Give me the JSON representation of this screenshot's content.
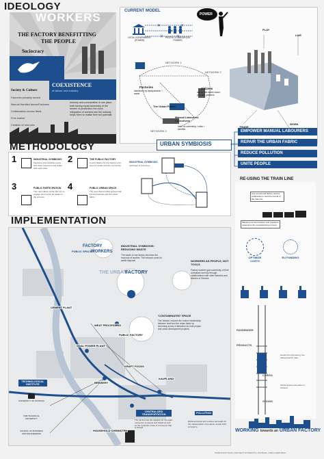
{
  "ideology": {
    "title": "IDEOLOGY",
    "poster": {
      "workers": "WORKERS",
      "headline_1": "THE FACTORY BENEFITTING",
      "headline_2": "THE PEOPLE",
      "sociocracy": "Sociocracy",
      "coexistence": "COEXISTENCE",
      "coexistence_sub": "of labour and industry",
      "society_culture": "Society & Culture",
      "bullets": [
        "Factories privately owned",
        "Manual Handled labour/Factories",
        "Collaboration across fields",
        "Free market",
        "Creation of new jobs"
      ],
      "body_text": "Industry and communities in one place, both having equal ownership of the means of production; the close integration of workers into the industry helps them to realise their full potential."
    }
  },
  "current_model": {
    "label": "CURRENT MODEL",
    "power": "POWER",
    "local_gov": "LOCAL GOVERNMENT (POWER)",
    "people": "PEOPLE & LABOUR (NO POWER)",
    "network_1": "NETWORK 1",
    "network_2": "NETWORK 2",
    "network_3": "NETWORK 3",
    "factories": "Factories",
    "factories_sub": "distributed by transportation + waste",
    "citizens": "Citizens",
    "citizens_sub": "lack of self-driven vision; jobs and positions",
    "urban_fabric": "The Urban Fabric",
    "manual_labourers": "Manual Labourers Collectively",
    "manual_sub": "have no ownership / voice + benefits",
    "play": "PLAY",
    "live": "LIVE",
    "trade": "TRADE",
    "work": "WORK"
  },
  "urban_symbiosis": {
    "title": "URBAN SYMBIOSIS",
    "items": [
      "EMPOWER MANUAL LABOURERS",
      "REPAIR THE URBAN FABRIC",
      "REDUCE POLLUTION",
      "UNITE PEOPLE"
    ]
  },
  "methodology": {
    "title": "METHODOLOGY",
    "steps": [
      {
        "num": "1",
        "label": "INDUSTRIAL SYMBIOSIS",
        "text": "Factories and industries reuse and share resources and waste with each other."
      },
      {
        "num": "2",
        "label": "THE PUBLIC FACTORY",
        "text": "A civil initiative for the factory to be open for locals and the community."
      },
      {
        "num": "3",
        "label": "PUBLIC PARTICIPATION",
        "text": "The main values of the plan are to engage and involve all parties in the process."
      },
      {
        "num": "4",
        "label": "PUBLIC URBAN SPACE",
        "text": "The new shared public spaces that link the factories with the urban fabric."
      }
    ],
    "diagram_label": "INDUSTRIAL SYMBIOSIS",
    "diagram_sub": "exchange of resources"
  },
  "train_line": {
    "title": "RE-USING THE TRAIN LINE",
    "boxes": [
      "City council and factory owners collaborate to start the revival of the train line.",
      "Mapping out the transport and 'pipelines' network for the manufacturing process.",
      "OPTIMIZE COSTS",
      "EU FUNDING",
      "LOCAL BUSINESSES",
      "PASSENGERS",
      "Goods from the factory are transported by train.",
      "Social spaces and parks in Ostrava"
    ],
    "optimize": "OPTIMIZE COSTS",
    "eu": "EU FUNDING",
    "labels": [
      "PASSENGER",
      "PRODUCTS",
      "CARGO",
      "GOODS"
    ]
  },
  "implementation": {
    "title": "IMPLEMENTATION",
    "factory_workers_1": "FACTORY",
    "factory_workers_2": "WORKERS",
    "public_space": "PUBLIC SPACE",
    "the_urban": "THE URBAN",
    "factory": "FACTORY",
    "symbiosis_title": "INDUSTRIAL SYMBIOSIS: REDUCING WASTE",
    "symbiosis_text": "The waste of one factory becomes the resource of another. The inbound costs for waste disposal.",
    "workers_title": "WORKERS AS PEOPLE, NOT TOOLS",
    "workers_text": "Factory workers gain ownership of their workplace and rely through collaborations with other factories and citizens of Ostrava.",
    "contaminated_title": "'CONTAMINATED' SPACE",
    "contaminated_text": "The 'islands' reduces the broken relationship between itself and the urban fabric by becoming zones of attraction for both people and urban development projects.",
    "places": [
      "CEMENT PLANT",
      "WEAT PROCESSING",
      "COAL POWER PLANT",
      "PUBLIC FACTORY",
      "KRAFT FOODS",
      "KAUFLAND",
      "BREWERY",
      "HOUSEHOLD CHEMISTRY",
      "CENTRALIZED TRANSPORTATION",
      "POLLUTION"
    ],
    "tech_institute": "TECHNOLOGICAL INSTITUTE",
    "legend": [
      "UNIVERSITY OF OSTRAVA",
      "VSB-TECHNICAL UNIVERSITY",
      "SCHOOL OF BUSINESS AND ENGINEERING"
    ],
    "pollution_text": "Existing houses and existing rail freight for the transportation of products remain CO2 emissions.",
    "centralized_text": "The rail line has the capacity for the rapid movement of people and freight as well as the symbiotic reuse of a resource that is shared."
  },
  "footer": {
    "working": "WORKING",
    "towards": "towards an",
    "urban_factory": "URBAN FACTORY",
    "credits": "WORKSHOP TEAM | PROJECT STUDENTS | OSTRAVA, CZECH REPUBLIC"
  },
  "colors": {
    "accent": "#1d4f8f",
    "dark": "#1b1b1b",
    "bg": "#f2f2f2"
  }
}
